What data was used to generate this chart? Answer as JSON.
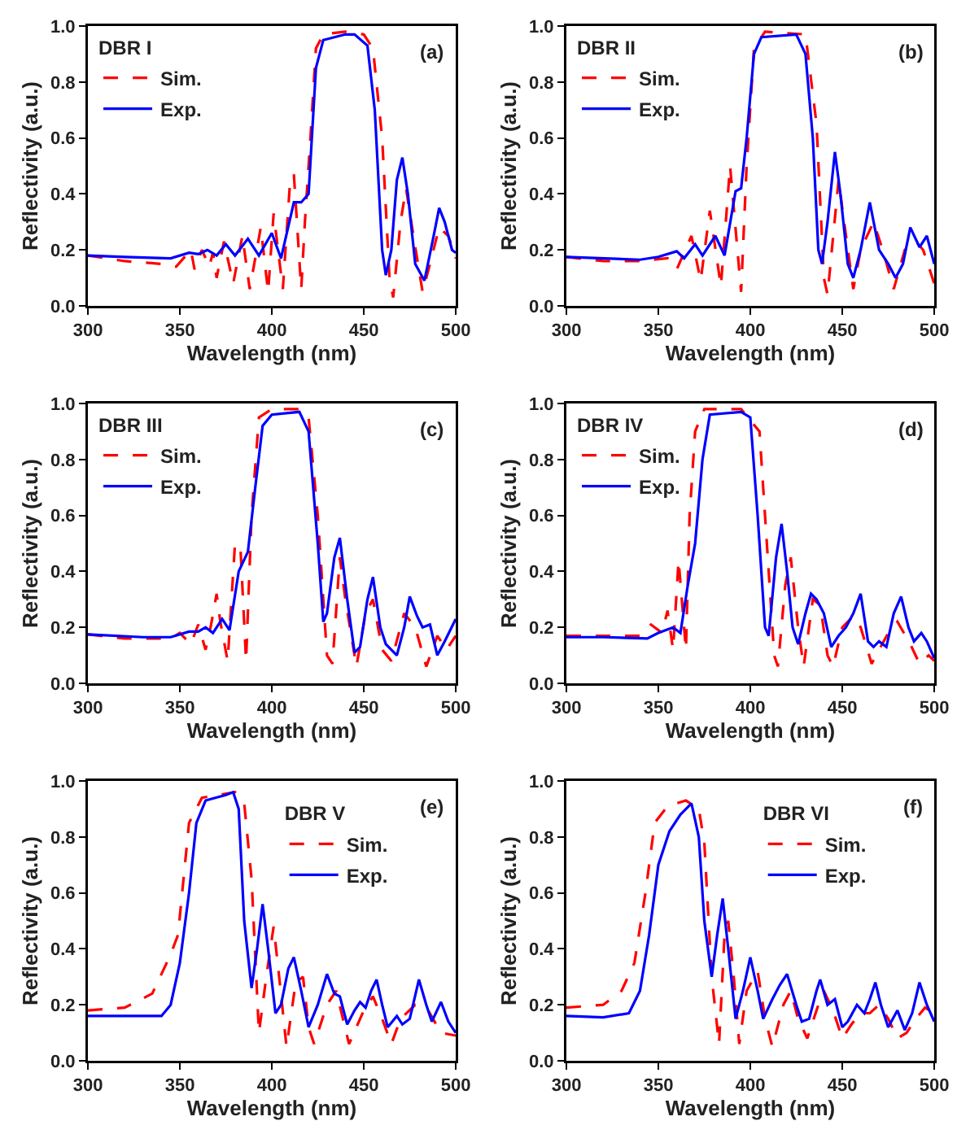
{
  "chart_data": [
    {
      "type": "line",
      "xlabel": "Wavelength (nm)",
      "ylabel": "Reflectivity (a.u.)",
      "legend_title": "DBR I",
      "legend": "top left",
      "annotations": [
        "(a)"
      ],
      "xlim": [
        300,
        500
      ],
      "xticks": [
        300,
        350,
        400,
        450,
        500
      ],
      "ylim": [
        0,
        1
      ],
      "yticks": [
        {
          "value": 0,
          "label": "0.0"
        },
        {
          "value": 0.2,
          "label": "0.2"
        },
        {
          "value": 0.4,
          "label": "0.4"
        },
        {
          "value": 0.6,
          "label": "0.6"
        },
        {
          "value": 0.8,
          "label": "0.8"
        },
        {
          "value": 1,
          "label": "1.0"
        }
      ],
      "series": [
        {
          "name": "Sim.",
          "color": "#ff0000",
          "line_style": "dashed",
          "x": [
            300,
            320,
            340,
            348,
            356,
            358,
            362,
            366,
            368,
            370,
            374,
            379,
            384,
            388,
            394,
            398,
            401,
            406,
            410,
            412,
            416,
            418,
            421,
            424,
            428,
            440,
            450,
            455,
            460,
            464,
            466,
            470,
            473,
            477,
            482,
            486,
            491,
            496,
            500
          ],
          "values": [
            0.18,
            0.16,
            0.15,
            0.14,
            0.2,
            0.13,
            0.2,
            0.14,
            0.19,
            0.1,
            0.23,
            0.08,
            0.25,
            0.06,
            0.28,
            0.05,
            0.33,
            0.06,
            0.45,
            0.47,
            0.06,
            0.3,
            0.6,
            0.92,
            0.97,
            0.98,
            0.97,
            0.92,
            0.6,
            0.1,
            0.03,
            0.3,
            0.42,
            0.25,
            0.05,
            0.15,
            0.28,
            0.25,
            0.17
          ]
        },
        {
          "name": "Exp.",
          "color": "#0000ff",
          "line_style": "solid",
          "x": [
            300,
            320,
            345,
            355,
            360,
            365,
            370,
            375,
            380,
            387,
            393,
            400,
            405,
            412,
            416,
            420,
            424,
            428,
            440,
            445,
            452,
            456,
            460,
            462,
            465,
            468,
            471,
            474,
            478,
            483,
            488,
            491,
            494,
            498,
            500
          ],
          "values": [
            0.18,
            0.175,
            0.17,
            0.19,
            0.185,
            0.2,
            0.18,
            0.22,
            0.18,
            0.24,
            0.18,
            0.26,
            0.17,
            0.37,
            0.37,
            0.4,
            0.85,
            0.95,
            0.97,
            0.97,
            0.93,
            0.7,
            0.2,
            0.11,
            0.2,
            0.45,
            0.53,
            0.4,
            0.15,
            0.09,
            0.25,
            0.35,
            0.3,
            0.2,
            0.19
          ]
        }
      ]
    },
    {
      "type": "line",
      "xlabel": "Wavelength (nm)",
      "ylabel": "Reflectivity (a.u.)",
      "legend_title": "DBR II",
      "legend": "top left",
      "annotations": [
        "(b)"
      ],
      "xlim": [
        300,
        500
      ],
      "xticks": [
        300,
        350,
        400,
        450,
        500
      ],
      "ylim": [
        0,
        1
      ],
      "yticks": [
        {
          "value": 0,
          "label": "0.0"
        },
        {
          "value": 0.2,
          "label": "0.2"
        },
        {
          "value": 0.4,
          "label": "0.4"
        },
        {
          "value": 0.6,
          "label": "0.6"
        },
        {
          "value": 0.8,
          "label": "0.8"
        },
        {
          "value": 1,
          "label": "1.0"
        }
      ],
      "series": [
        {
          "name": "Sim.",
          "color": "#ff0000",
          "line_style": "dashed",
          "x": [
            300,
            320,
            340,
            355,
            360,
            368,
            373,
            378,
            384,
            389,
            395,
            398,
            402,
            408,
            430,
            436,
            440,
            442,
            448,
            451,
            456,
            460,
            467,
            472,
            478,
            484,
            490,
            494,
            500
          ],
          "values": [
            0.175,
            0.16,
            0.16,
            0.17,
            0.13,
            0.25,
            0.09,
            0.34,
            0.07,
            0.5,
            0.05,
            0.5,
            0.92,
            0.98,
            0.97,
            0.65,
            0.1,
            0.04,
            0.45,
            0.3,
            0.06,
            0.2,
            0.3,
            0.2,
            0.06,
            0.2,
            0.23,
            0.2,
            0.08
          ]
        },
        {
          "name": "Exp.",
          "color": "#0000ff",
          "line_style": "solid",
          "x": [
            300,
            340,
            350,
            360,
            364,
            370,
            374,
            381,
            386,
            392,
            395,
            398,
            402,
            406,
            425,
            430,
            434,
            437,
            439,
            442,
            446,
            449,
            453,
            456,
            460,
            465,
            470,
            475,
            479,
            483,
            487,
            492,
            496,
            500
          ],
          "values": [
            0.175,
            0.165,
            0.175,
            0.195,
            0.17,
            0.22,
            0.18,
            0.25,
            0.18,
            0.41,
            0.42,
            0.6,
            0.9,
            0.96,
            0.97,
            0.9,
            0.6,
            0.2,
            0.15,
            0.3,
            0.55,
            0.4,
            0.15,
            0.1,
            0.2,
            0.37,
            0.2,
            0.15,
            0.1,
            0.15,
            0.28,
            0.21,
            0.25,
            0.15
          ]
        }
      ]
    },
    {
      "type": "line",
      "xlabel": "Wavelength (nm)",
      "ylabel": "Reflectivity (a.u.)",
      "legend_title": "DBR III",
      "legend": "top left",
      "annotations": [
        "(c)"
      ],
      "xlim": [
        300,
        500
      ],
      "xticks": [
        300,
        350,
        400,
        450,
        500
      ],
      "ylim": [
        0,
        1
      ],
      "yticks": [
        {
          "value": 0,
          "label": "0.0"
        },
        {
          "value": 0.2,
          "label": "0.2"
        },
        {
          "value": 0.4,
          "label": "0.4"
        },
        {
          "value": 0.6,
          "label": "0.6"
        },
        {
          "value": 0.8,
          "label": "0.8"
        },
        {
          "value": 1,
          "label": "1.0"
        }
      ],
      "series": [
        {
          "name": "Sim.",
          "color": "#ff0000",
          "line_style": "dashed",
          "x": [
            300,
            320,
            345,
            350,
            356,
            360,
            364,
            367,
            370,
            372,
            376,
            380,
            383,
            386,
            389,
            393,
            400,
            415,
            420,
            425,
            430,
            433,
            437,
            440,
            446,
            451,
            455,
            460,
            465,
            472,
            478,
            484,
            490,
            495,
            500
          ],
          "values": [
            0.175,
            0.16,
            0.16,
            0.18,
            0.14,
            0.21,
            0.12,
            0.21,
            0.32,
            0.22,
            0.08,
            0.5,
            0.48,
            0.08,
            0.6,
            0.95,
            0.98,
            0.98,
            0.95,
            0.6,
            0.1,
            0.07,
            0.45,
            0.3,
            0.06,
            0.25,
            0.3,
            0.12,
            0.08,
            0.25,
            0.2,
            0.06,
            0.17,
            0.12,
            0.17
          ]
        },
        {
          "name": "Exp.",
          "color": "#0000ff",
          "line_style": "solid",
          "x": [
            300,
            330,
            345,
            355,
            360,
            364,
            368,
            373,
            377,
            382,
            387,
            391,
            395,
            400,
            415,
            420,
            425,
            428,
            430,
            434,
            437,
            441,
            445,
            448,
            452,
            455,
            459,
            462,
            468,
            472,
            475,
            479,
            482,
            486,
            490,
            494,
            500
          ],
          "values": [
            0.175,
            0.165,
            0.165,
            0.185,
            0.185,
            0.2,
            0.18,
            0.23,
            0.19,
            0.4,
            0.47,
            0.7,
            0.92,
            0.96,
            0.97,
            0.9,
            0.5,
            0.22,
            0.25,
            0.45,
            0.52,
            0.3,
            0.11,
            0.13,
            0.3,
            0.38,
            0.2,
            0.14,
            0.1,
            0.2,
            0.31,
            0.24,
            0.2,
            0.21,
            0.1,
            0.15,
            0.23
          ]
        }
      ]
    },
    {
      "type": "line",
      "xlabel": "Wavelength (nm)",
      "ylabel": "Reflectivity (a.u.)",
      "legend_title": "DBR IV",
      "legend": "top left",
      "annotations": [
        "(d)"
      ],
      "xlim": [
        300,
        500
      ],
      "xticks": [
        300,
        350,
        400,
        450,
        500
      ],
      "ylim": [
        0,
        1
      ],
      "yticks": [
        {
          "value": 0,
          "label": "0.0"
        },
        {
          "value": 0.2,
          "label": "0.2"
        },
        {
          "value": 0.4,
          "label": "0.4"
        },
        {
          "value": 0.6,
          "label": "0.6"
        },
        {
          "value": 0.8,
          "label": "0.8"
        },
        {
          "value": 1,
          "label": "1.0"
        }
      ],
      "series": [
        {
          "name": "Sim.",
          "color": "#ff0000",
          "line_style": "dashed",
          "x": [
            300,
            320,
            340,
            346,
            352,
            355,
            358,
            361,
            365,
            367,
            370,
            375,
            395,
            405,
            410,
            413,
            415,
            419,
            422,
            426,
            429,
            434,
            438,
            442,
            445,
            450,
            456,
            460,
            466,
            470,
            475,
            480,
            487,
            492,
            497,
            500
          ],
          "values": [
            0.17,
            0.17,
            0.17,
            0.21,
            0.18,
            0.26,
            0.12,
            0.44,
            0.12,
            0.6,
            0.9,
            0.98,
            0.98,
            0.9,
            0.4,
            0.1,
            0.06,
            0.35,
            0.45,
            0.2,
            0.06,
            0.3,
            0.28,
            0.1,
            0.06,
            0.2,
            0.24,
            0.2,
            0.07,
            0.12,
            0.18,
            0.22,
            0.14,
            0.07,
            0.1,
            0.08
          ]
        },
        {
          "name": "Exp.",
          "color": "#0000ff",
          "line_style": "solid",
          "x": [
            300,
            320,
            344,
            350,
            358,
            362,
            366,
            370,
            374,
            378,
            395,
            400,
            404,
            408,
            410,
            414,
            417,
            420,
            423,
            426,
            430,
            433,
            436,
            440,
            444,
            448,
            452,
            456,
            460,
            464,
            467,
            470,
            474,
            478,
            482,
            486,
            489,
            493,
            496,
            500
          ],
          "values": [
            0.165,
            0.165,
            0.16,
            0.18,
            0.2,
            0.18,
            0.35,
            0.5,
            0.8,
            0.96,
            0.97,
            0.95,
            0.6,
            0.2,
            0.17,
            0.45,
            0.57,
            0.4,
            0.2,
            0.14,
            0.25,
            0.32,
            0.3,
            0.25,
            0.13,
            0.17,
            0.2,
            0.25,
            0.32,
            0.15,
            0.13,
            0.15,
            0.13,
            0.25,
            0.31,
            0.2,
            0.15,
            0.18,
            0.15,
            0.09
          ]
        }
      ]
    },
    {
      "type": "line",
      "xlabel": "Wavelength (nm)",
      "ylabel": "Reflectivity (a.u.)",
      "legend_title": "DBR V",
      "legend": "top right",
      "annotations": [
        "(e)"
      ],
      "xlim": [
        300,
        500
      ],
      "xticks": [
        300,
        350,
        400,
        450,
        500
      ],
      "ylim": [
        0,
        1
      ],
      "yticks": [
        {
          "value": 0,
          "label": "0.0"
        },
        {
          "value": 0.2,
          "label": "0.2"
        },
        {
          "value": 0.4,
          "label": "0.4"
        },
        {
          "value": 0.6,
          "label": "0.6"
        },
        {
          "value": 0.8,
          "label": "0.8"
        },
        {
          "value": 1,
          "label": "1.0"
        }
      ],
      "series": [
        {
          "name": "Sim.",
          "color": "#ff0000",
          "line_style": "dashed",
          "x": [
            300,
            320,
            335,
            345,
            349,
            355,
            362,
            380,
            385,
            389,
            393,
            397,
            401,
            404,
            408,
            413,
            417,
            420,
            423,
            430,
            435,
            442,
            450,
            455,
            460,
            465,
            470,
            478,
            485,
            492,
            500
          ],
          "values": [
            0.18,
            0.19,
            0.24,
            0.38,
            0.45,
            0.85,
            0.94,
            0.96,
            0.92,
            0.65,
            0.1,
            0.3,
            0.48,
            0.3,
            0.05,
            0.28,
            0.3,
            0.12,
            0.06,
            0.2,
            0.25,
            0.06,
            0.18,
            0.23,
            0.15,
            0.06,
            0.15,
            0.2,
            0.18,
            0.1,
            0.09
          ]
        },
        {
          "name": "Exp.",
          "color": "#0000ff",
          "line_style": "solid",
          "x": [
            300,
            340,
            345,
            350,
            355,
            359,
            364,
            375,
            379,
            382,
            385,
            389,
            392,
            395,
            398,
            402,
            405,
            409,
            412,
            416,
            420,
            425,
            430,
            434,
            437,
            441,
            445,
            448,
            451,
            454,
            457,
            460,
            463,
            468,
            471,
            475,
            480,
            484,
            487,
            492,
            496,
            500
          ],
          "values": [
            0.16,
            0.16,
            0.2,
            0.35,
            0.6,
            0.85,
            0.93,
            0.95,
            0.96,
            0.9,
            0.5,
            0.26,
            0.4,
            0.56,
            0.4,
            0.17,
            0.2,
            0.33,
            0.37,
            0.25,
            0.12,
            0.2,
            0.31,
            0.24,
            0.23,
            0.13,
            0.18,
            0.21,
            0.19,
            0.25,
            0.29,
            0.2,
            0.12,
            0.16,
            0.13,
            0.15,
            0.29,
            0.2,
            0.14,
            0.21,
            0.14,
            0.1
          ]
        }
      ]
    },
    {
      "type": "line",
      "xlabel": "Wavelength (nm)",
      "ylabel": "Reflectivity (a.u.)",
      "legend_title": "DBR VI",
      "legend": "top right",
      "annotations": [
        "(f)"
      ],
      "xlim": [
        300,
        500
      ],
      "xticks": [
        300,
        350,
        400,
        450,
        500
      ],
      "ylim": [
        0,
        1
      ],
      "yticks": [
        {
          "value": 0,
          "label": "0.0"
        },
        {
          "value": 0.2,
          "label": "0.2"
        },
        {
          "value": 0.4,
          "label": "0.4"
        },
        {
          "value": 0.6,
          "label": "0.6"
        },
        {
          "value": 0.8,
          "label": "0.8"
        },
        {
          "value": 1,
          "label": "1.0"
        }
      ],
      "series": [
        {
          "name": "Sim.",
          "color": "#ff0000",
          "line_style": "dashed",
          "x": [
            300,
            320,
            330,
            337,
            343,
            348,
            355,
            365,
            372,
            375,
            379,
            383,
            386,
            388,
            391,
            394,
            398,
            404,
            408,
            412,
            418,
            422,
            426,
            431,
            437,
            440,
            445,
            450,
            455,
            460,
            465,
            470,
            475,
            480,
            485,
            490,
            495,
            500
          ],
          "values": [
            0.19,
            0.2,
            0.25,
            0.35,
            0.6,
            0.85,
            0.91,
            0.93,
            0.9,
            0.78,
            0.3,
            0.06,
            0.45,
            0.5,
            0.3,
            0.06,
            0.25,
            0.32,
            0.15,
            0.05,
            0.2,
            0.25,
            0.15,
            0.08,
            0.2,
            0.25,
            0.18,
            0.08,
            0.13,
            0.17,
            0.17,
            0.2,
            0.15,
            0.08,
            0.1,
            0.15,
            0.19,
            0.17
          ]
        },
        {
          "name": "Exp.",
          "color": "#0000ff",
          "line_style": "solid",
          "x": [
            300,
            320,
            334,
            340,
            345,
            350,
            356,
            362,
            368,
            372,
            375,
            379,
            382,
            385,
            388,
            392,
            396,
            400,
            404,
            407,
            412,
            416,
            420,
            425,
            428,
            432,
            436,
            438,
            442,
            446,
            450,
            453,
            458,
            462,
            465,
            468,
            471,
            475,
            480,
            484,
            488,
            492,
            496,
            500
          ],
          "values": [
            0.16,
            0.155,
            0.17,
            0.25,
            0.45,
            0.7,
            0.82,
            0.88,
            0.92,
            0.8,
            0.5,
            0.3,
            0.45,
            0.58,
            0.4,
            0.15,
            0.25,
            0.37,
            0.25,
            0.15,
            0.22,
            0.27,
            0.31,
            0.2,
            0.14,
            0.15,
            0.25,
            0.29,
            0.2,
            0.22,
            0.12,
            0.14,
            0.2,
            0.17,
            0.22,
            0.28,
            0.2,
            0.12,
            0.18,
            0.11,
            0.17,
            0.28,
            0.2,
            0.14
          ]
        }
      ]
    }
  ]
}
